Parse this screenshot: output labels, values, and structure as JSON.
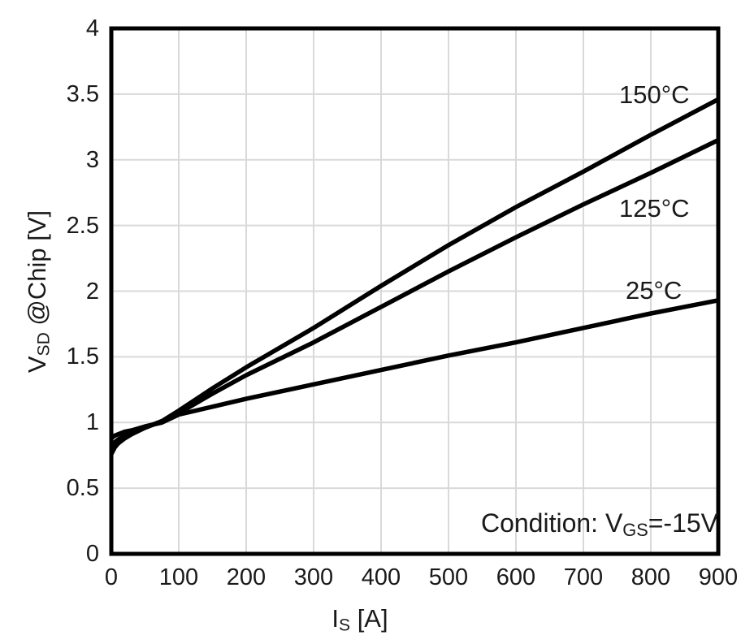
{
  "figure": {
    "background_color": "#ffffff",
    "text_color": "#1a1a1a",
    "labels": {
      "y_title": {
        "sym": "V",
        "sub": "SD",
        "rest": " @Chip [V]"
      },
      "x_title": {
        "sym": "I",
        "sub": "S",
        "rest": " [A]"
      },
      "condition": {
        "prefix": "Condition: V",
        "sub": "GS",
        "suffix": "=-15V"
      }
    }
  },
  "chart_data": {
    "type": "line",
    "title": "",
    "xlabel": "I_S [A]",
    "ylabel": "V_SD @Chip [V]",
    "annotation": "Condition: V_GS=-15V",
    "xlim": [
      0,
      900
    ],
    "ylim": [
      0,
      4
    ],
    "x_ticks": [
      "0",
      "100",
      "200",
      "300",
      "400",
      "500",
      "600",
      "700",
      "800",
      "900"
    ],
    "y_ticks": [
      "0",
      "0.5",
      "1",
      "1.5",
      "2",
      "2.5",
      "3",
      "3.5",
      "4"
    ],
    "grid": true,
    "gridline_color": "#d9d9d9",
    "border_color": "#000000",
    "line_color": "#000000",
    "legend_position": "inline-labels",
    "series": [
      {
        "name": "150°C",
        "points": [
          [
            0,
            0.76
          ],
          [
            5,
            0.81
          ],
          [
            10,
            0.84
          ],
          [
            20,
            0.88
          ],
          [
            30,
            0.91
          ],
          [
            50,
            0.96
          ],
          [
            75,
            1.01
          ],
          [
            100,
            1.09
          ],
          [
            150,
            1.26
          ],
          [
            200,
            1.42
          ],
          [
            300,
            1.72
          ],
          [
            400,
            2.04
          ],
          [
            500,
            2.35
          ],
          [
            600,
            2.64
          ],
          [
            700,
            2.91
          ],
          [
            800,
            3.19
          ],
          [
            900,
            3.46
          ]
        ]
      },
      {
        "name": "125°C",
        "points": [
          [
            0,
            0.82
          ],
          [
            5,
            0.85
          ],
          [
            10,
            0.87
          ],
          [
            20,
            0.9
          ],
          [
            30,
            0.92
          ],
          [
            50,
            0.96
          ],
          [
            75,
            1.01
          ],
          [
            100,
            1.07
          ],
          [
            150,
            1.22
          ],
          [
            200,
            1.36
          ],
          [
            300,
            1.61
          ],
          [
            400,
            1.88
          ],
          [
            500,
            2.15
          ],
          [
            600,
            2.41
          ],
          [
            700,
            2.66
          ],
          [
            800,
            2.9
          ],
          [
            900,
            3.15
          ]
        ]
      },
      {
        "name": "25°C",
        "points": [
          [
            0,
            0.88
          ],
          [
            5,
            0.9
          ],
          [
            10,
            0.91
          ],
          [
            20,
            0.93
          ],
          [
            30,
            0.94
          ],
          [
            50,
            0.97
          ],
          [
            75,
            1.0
          ],
          [
            100,
            1.06
          ],
          [
            150,
            1.12
          ],
          [
            200,
            1.18
          ],
          [
            300,
            1.29
          ],
          [
            400,
            1.4
          ],
          [
            500,
            1.51
          ],
          [
            600,
            1.61
          ],
          [
            700,
            1.72
          ],
          [
            800,
            1.83
          ],
          [
            900,
            1.93
          ]
        ]
      }
    ]
  }
}
